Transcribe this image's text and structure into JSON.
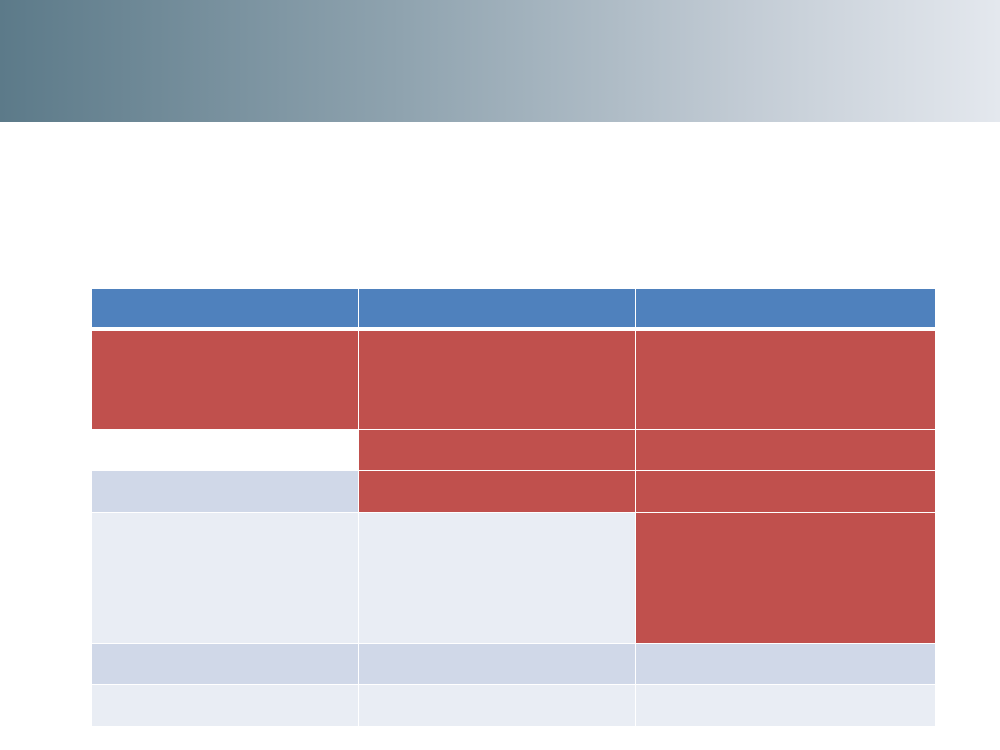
{
  "table": {
    "rows": [
      [
        "#4f81bd",
        "#4f81bd",
        "#4f81bd"
      ],
      [
        "#c0504d",
        "#c0504d",
        "#c0504d"
      ],
      [
        "#ffffff",
        "#c0504d",
        "#c0504d"
      ],
      [
        "#d0d8e8",
        "#c0504d",
        "#c0504d"
      ],
      [
        "#e9edf4",
        "#e9edf4",
        "#c0504d"
      ],
      [
        "#d0d8e8",
        "#d0d8e8",
        "#d0d8e8"
      ],
      [
        "#e9edf4",
        "#e9edf4",
        "#e9edf4"
      ]
    ]
  }
}
